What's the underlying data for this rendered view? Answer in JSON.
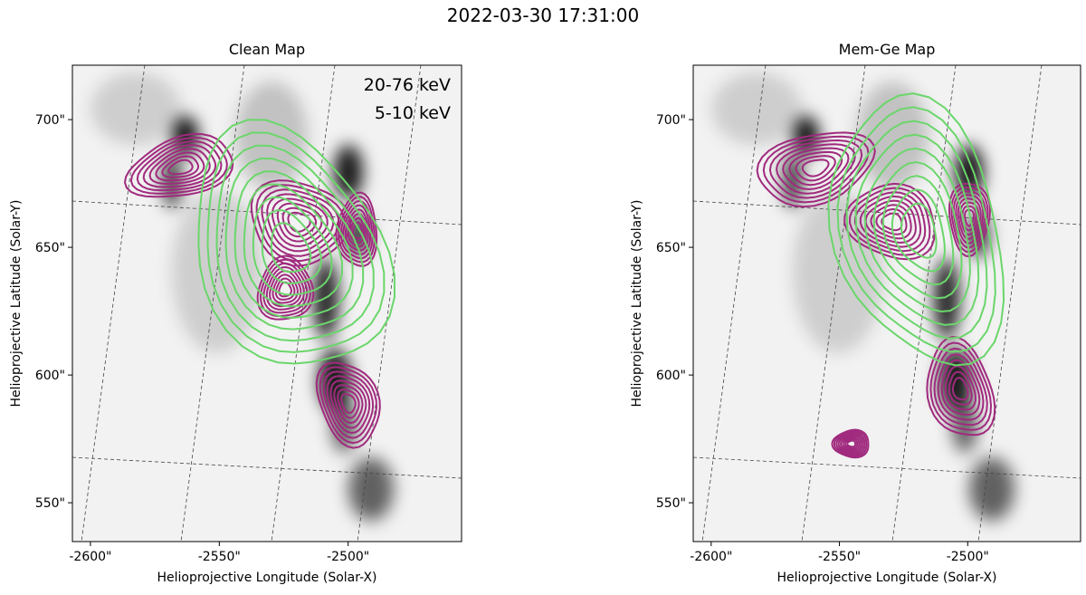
{
  "title": "2022-03-30 17:31:00",
  "chart_data": [
    {
      "type": "image",
      "title": "Clean Map",
      "xlabel": "Helioprojective Longitude (Solar-X)",
      "ylabel": "Helioprojective Latitude (Solar-Y)",
      "xlim": [
        -2607,
        -2456
      ],
      "ylim": [
        534.8,
        721.3
      ],
      "xticks": [
        {
          "value": -2600,
          "label": "-2600\""
        },
        {
          "value": -2550,
          "label": "-2550\""
        },
        {
          "value": -2500,
          "label": "-2500\""
        }
      ],
      "yticks": [
        {
          "value": 550,
          "label": "550\""
        },
        {
          "value": 600,
          "label": "600\""
        },
        {
          "value": 650,
          "label": "650\""
        },
        {
          "value": 700,
          "label": "700\""
        }
      ],
      "legend": true,
      "series": [
        {
          "name": "20-76 keV",
          "color": "#a02a7e"
        },
        {
          "name": "5-10 keV",
          "color": "#6bd66b"
        }
      ]
    },
    {
      "type": "image",
      "title": "Mem-Ge Map",
      "xlabel": "Helioprojective Longitude (Solar-X)",
      "ylabel": "Helioprojective Latitude (Solar-Y)",
      "xlim": [
        -2607,
        -2456
      ],
      "ylim": [
        534.8,
        721.3
      ],
      "xticks": [
        {
          "value": -2600,
          "label": "-2600\""
        },
        {
          "value": -2550,
          "label": "-2550\""
        },
        {
          "value": -2500,
          "label": "-2500\""
        }
      ],
      "yticks": [
        {
          "value": 550,
          "label": "550\""
        },
        {
          "value": 600,
          "label": "600\""
        },
        {
          "value": 650,
          "label": "650\""
        },
        {
          "value": 700,
          "label": "700\""
        }
      ],
      "legend": false,
      "series": [
        {
          "name": "20-76 keV",
          "color": "#a02a7e"
        },
        {
          "name": "5-10 keV",
          "color": "#6bd66b"
        }
      ]
    }
  ]
}
